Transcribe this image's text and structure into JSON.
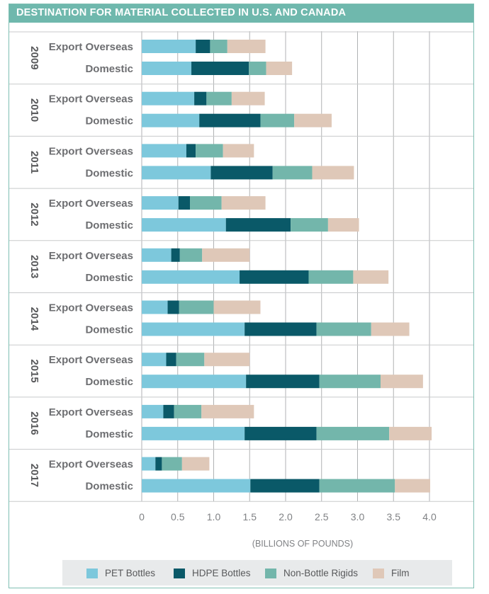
{
  "title": "DESTINATION FOR MATERIAL COLLECTED IN U.S. AND CANADA",
  "colors": {
    "header": "#6fb8ad",
    "PET Bottles": "#7dc8dc",
    "HDPE Bottles": "#0a5968",
    "Non-Bottle Rigids": "#73b6ab",
    "Film": "#dfc8b8",
    "grid": "#b0b2b4"
  },
  "chart_data": {
    "type": "bar",
    "orientation": "horizontal",
    "stacked": true,
    "title": "DESTINATION FOR MATERIAL COLLECTED IN U.S. AND CANADA",
    "xlabel": "(BILLIONS OF POUNDS)",
    "xlim": [
      0,
      4.0
    ],
    "xticks": [
      "0",
      "0.5",
      "1.0",
      "1.5",
      "2.0",
      "2.5",
      "3.0",
      "3.5",
      "4.0"
    ],
    "grid": true,
    "legend_position": "bottom",
    "series_names": [
      "PET Bottles",
      "HDPE Bottles",
      "Non-Bottle Rigids",
      "Film"
    ],
    "groups": [
      {
        "year": "2009",
        "rows": [
          {
            "label": "Export Overseas",
            "values": [
              0.75,
              0.2,
              0.24,
              0.53
            ]
          },
          {
            "label": "Domestic",
            "values": [
              0.69,
              0.8,
              0.24,
              0.36
            ]
          }
        ]
      },
      {
        "year": "2010",
        "rows": [
          {
            "label": "Export Overseas",
            "values": [
              0.73,
              0.17,
              0.35,
              0.46
            ]
          },
          {
            "label": "Domestic",
            "values": [
              0.8,
              0.85,
              0.47,
              0.52
            ]
          }
        ]
      },
      {
        "year": "2011",
        "rows": [
          {
            "label": "Export Overseas",
            "values": [
              0.62,
              0.13,
              0.38,
              0.43
            ]
          },
          {
            "label": "Domestic",
            "values": [
              0.96,
              0.86,
              0.55,
              0.58
            ]
          }
        ]
      },
      {
        "year": "2012",
        "rows": [
          {
            "label": "Export Overseas",
            "values": [
              0.51,
              0.16,
              0.44,
              0.61
            ]
          },
          {
            "label": "Domestic",
            "values": [
              1.17,
              0.9,
              0.52,
              0.43
            ]
          }
        ]
      },
      {
        "year": "2013",
        "rows": [
          {
            "label": "Export Overseas",
            "values": [
              0.41,
              0.12,
              0.31,
              0.66
            ]
          },
          {
            "label": "Domestic",
            "values": [
              1.36,
              0.96,
              0.62,
              0.49
            ]
          }
        ]
      },
      {
        "year": "2014",
        "rows": [
          {
            "label": "Export Overseas",
            "values": [
              0.36,
              0.16,
              0.48,
              0.65
            ]
          },
          {
            "label": "Domestic",
            "values": [
              1.43,
              1.0,
              0.76,
              0.53
            ]
          }
        ]
      },
      {
        "year": "2015",
        "rows": [
          {
            "label": "Export Overseas",
            "values": [
              0.34,
              0.14,
              0.39,
              0.63
            ]
          },
          {
            "label": "Domestic",
            "values": [
              1.45,
              1.02,
              0.85,
              0.59
            ]
          }
        ]
      },
      {
        "year": "2016",
        "rows": [
          {
            "label": "Export Overseas",
            "values": [
              0.3,
              0.15,
              0.38,
              0.73
            ]
          },
          {
            "label": "Domestic",
            "values": [
              1.43,
              1.0,
              1.01,
              0.59
            ]
          }
        ]
      },
      {
        "year": "2017",
        "rows": [
          {
            "label": "Export Overseas",
            "values": [
              0.19,
              0.09,
              0.28,
              0.38
            ]
          },
          {
            "label": "Domestic",
            "values": [
              1.51,
              0.96,
              1.05,
              0.49
            ]
          }
        ]
      }
    ]
  }
}
